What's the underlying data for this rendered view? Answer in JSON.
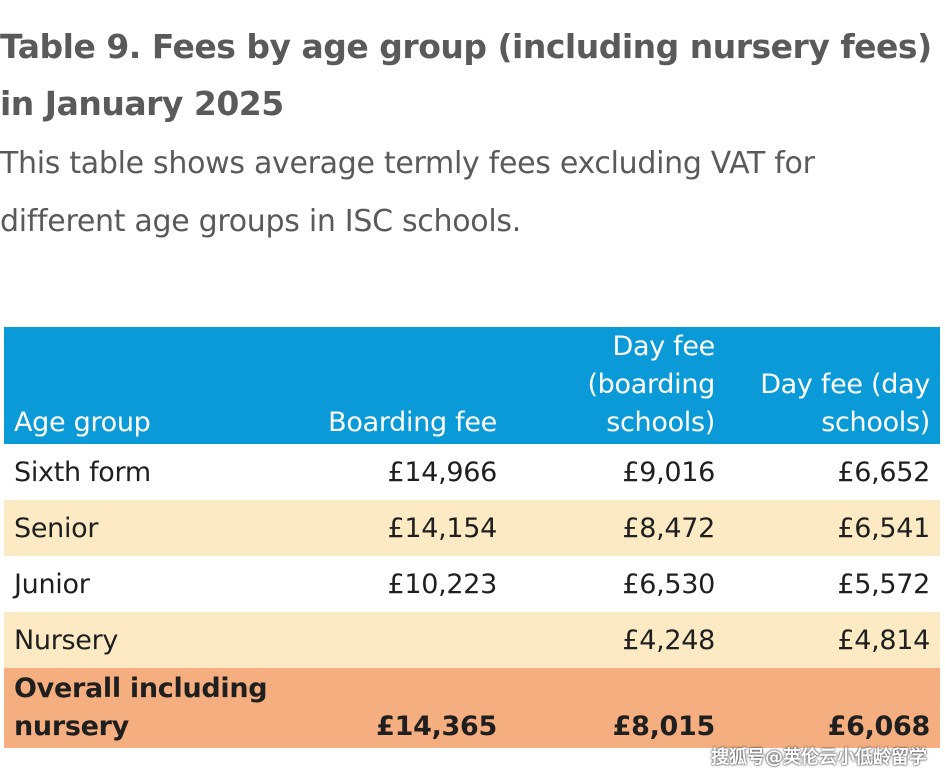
{
  "title": "Table 9. Fees by age group (including nursery fees) in January 2025",
  "subtitle": "This table shows average termly fees excluding VAT for different age groups in ISC schools.",
  "headers": {
    "age_group": "Age group",
    "boarding_fee": "Boarding fee",
    "day_fee_boarding": "Day fee (boarding schools)",
    "day_fee_day": "Day fee (day schools)"
  },
  "rows": [
    {
      "age_group": "Sixth form",
      "boarding_fee": "£14,966",
      "day_fee_boarding": "£9,016",
      "day_fee_day": "£6,652"
    },
    {
      "age_group": "Senior",
      "boarding_fee": "£14,154",
      "day_fee_boarding": "£8,472",
      "day_fee_day": "£6,541"
    },
    {
      "age_group": "Junior",
      "boarding_fee": "£10,223",
      "day_fee_boarding": "£6,530",
      "day_fee_day": "£5,572"
    },
    {
      "age_group": "Nursery",
      "boarding_fee": "",
      "day_fee_boarding": "£4,248",
      "day_fee_day": "£4,814"
    }
  ],
  "total": {
    "age_group": "Overall including nursery",
    "boarding_fee": "£14,365",
    "day_fee_boarding": "£8,015",
    "day_fee_day": "£6,068"
  },
  "watermark": "搜狐号@英伦云小低龄留学",
  "colors": {
    "header": "#0a9ad8",
    "band": "#fbeac4",
    "total": "#f5ae7f",
    "heading_text": "#5a5a5a"
  }
}
